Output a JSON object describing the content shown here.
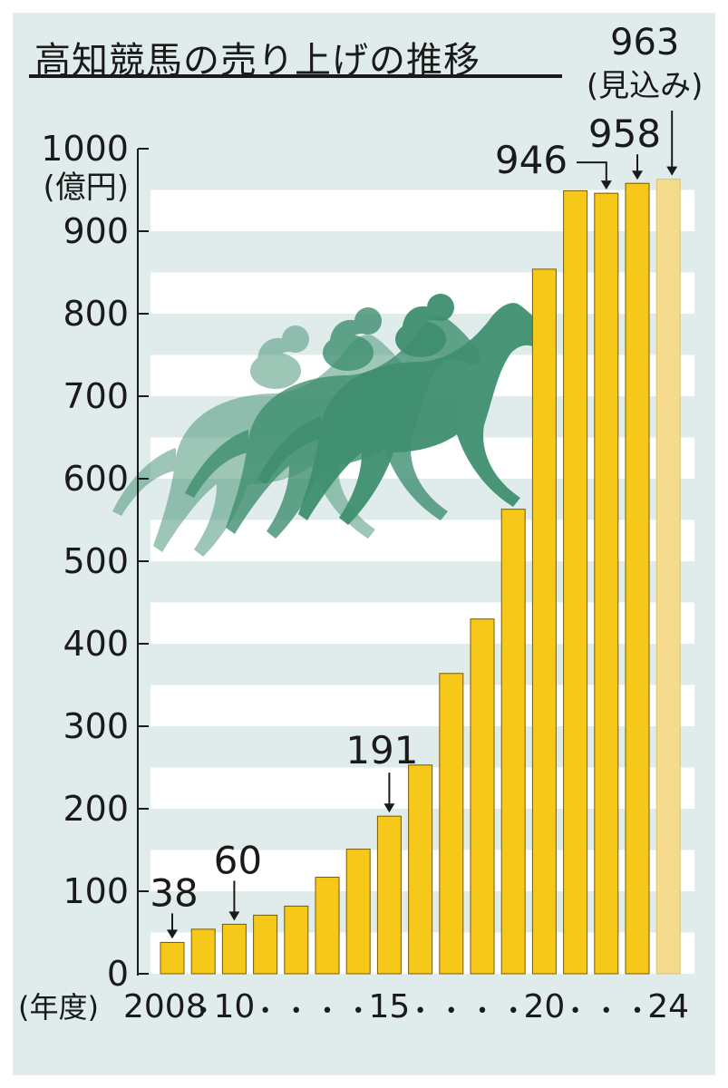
{
  "title": "高知競馬の売り上げの推移",
  "chart_data": {
    "type": "bar",
    "title": "高知競馬の売り上げの推移",
    "unit_label": "(億円)",
    "xlabel": "(年度)",
    "ylim": [
      0,
      1000
    ],
    "yticks": [
      "0",
      "100",
      "200",
      "300",
      "400",
      "500",
      "600",
      "700",
      "800",
      "900",
      "1000"
    ],
    "x": [
      "2008",
      "2009",
      "2010",
      "2011",
      "2012",
      "2013",
      "2014",
      "2015",
      "2016",
      "2017",
      "2018",
      "2019",
      "2020",
      "2021",
      "2022",
      "2023",
      "2024"
    ],
    "xtick_labels": [
      "2008",
      "•",
      "10",
      "•",
      "•",
      "•",
      "•",
      "15",
      "•",
      "•",
      "•",
      "•",
      "20",
      "•",
      "•",
      "•",
      "24"
    ],
    "values": [
      38,
      54,
      60,
      71,
      82,
      117,
      151,
      191,
      253,
      364,
      430,
      563,
      854,
      949,
      946,
      958,
      963
    ],
    "estimate_index": 16,
    "annotations": [
      {
        "label": "38",
        "index": 0
      },
      {
        "label": "60",
        "index": 2
      },
      {
        "label": "191",
        "index": 7
      },
      {
        "label": "946",
        "index": 14
      },
      {
        "label": "958",
        "index": 15
      },
      {
        "label": "963",
        "sublabel": "(見込み)",
        "index": 16
      }
    ],
    "grid": "horizontal white stripes",
    "colors": {
      "bar": "#f6c81a",
      "bar_edge": "#7a5a00",
      "estimate_bar": "#f5dc8c",
      "background": "#dfeceb",
      "stripe": "#ffffff",
      "horse_silhouette": "#3f8f70"
    }
  }
}
